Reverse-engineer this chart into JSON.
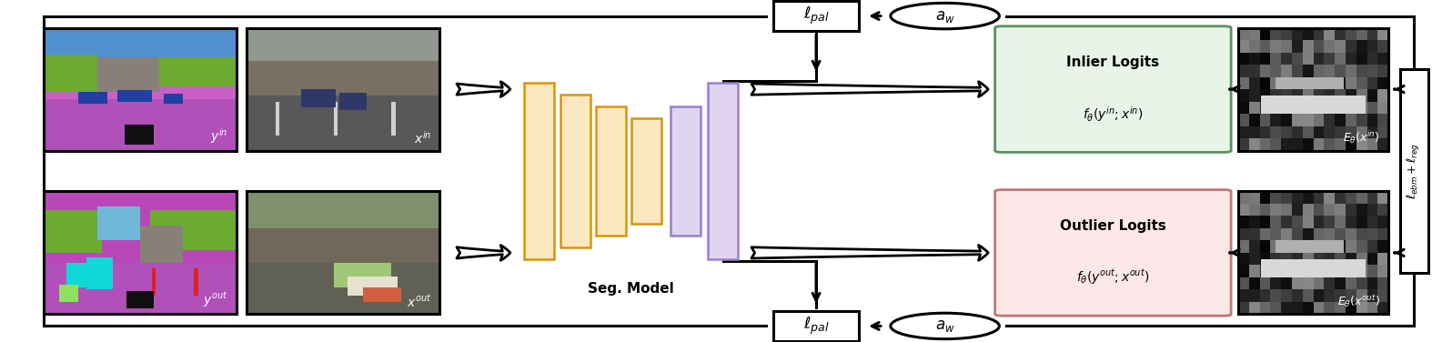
{
  "bg_color": "#ffffff",
  "fig_width": 15.74,
  "fig_height": 3.76,
  "seg_model_label": "Seg. Model",
  "inlier_title": "Inlier Logits",
  "inlier_formula": "$f_{\\theta}(y^{in}; x^{in})$",
  "outlier_title": "Outlier Logits",
  "outlier_formula": "$f_{\\theta}(y^{out}; x^{out})$",
  "top_lpal_label": "$\\ell_{pal}$",
  "bot_lpal_label": "$\\ell_{pal}$",
  "top_aw_label": "$a_w$",
  "bot_aw_label": "$a_w$",
  "right_label": "$\\ell_{ebm} + \\ell_{reg}$",
  "inlier_img_label": "$E_{\\theta}(x^{in})$",
  "outlier_img_label": "$E_{\\theta}(x^{out})$",
  "yin_label": "$y^{in}$",
  "xin_label": "$x^{in}$",
  "yout_label": "$y^{out}$",
  "xout_label": "$x^{out}$",
  "enc_bar_fc": "#fce8c0",
  "enc_bar_ec": "#d4960a",
  "dec_bar_fc": "#e0d4f0",
  "dec_bar_ec": "#9980c8",
  "inlier_fc": "#e8f4e8",
  "inlier_ec": "#5a9060",
  "outlier_fc": "#fce8e8",
  "outlier_ec": "#c07878",
  "lw": 2.2
}
